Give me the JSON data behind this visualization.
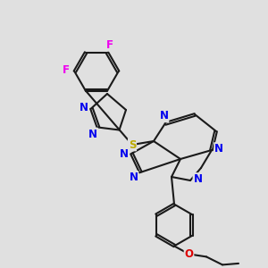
{
  "bg_color": "#e0e0e0",
  "bond_color": "#1a1a1a",
  "N_color": "#0000ee",
  "O_color": "#dd0000",
  "S_color": "#bbaa00",
  "F_color": "#ee00ee",
  "lw": 1.5,
  "dbo": 0.06,
  "fs": 8.5,
  "figsize": [
    3.0,
    3.0
  ],
  "dpi": 100,
  "xlim": [
    0,
    10
  ],
  "ylim": [
    0,
    10
  ]
}
